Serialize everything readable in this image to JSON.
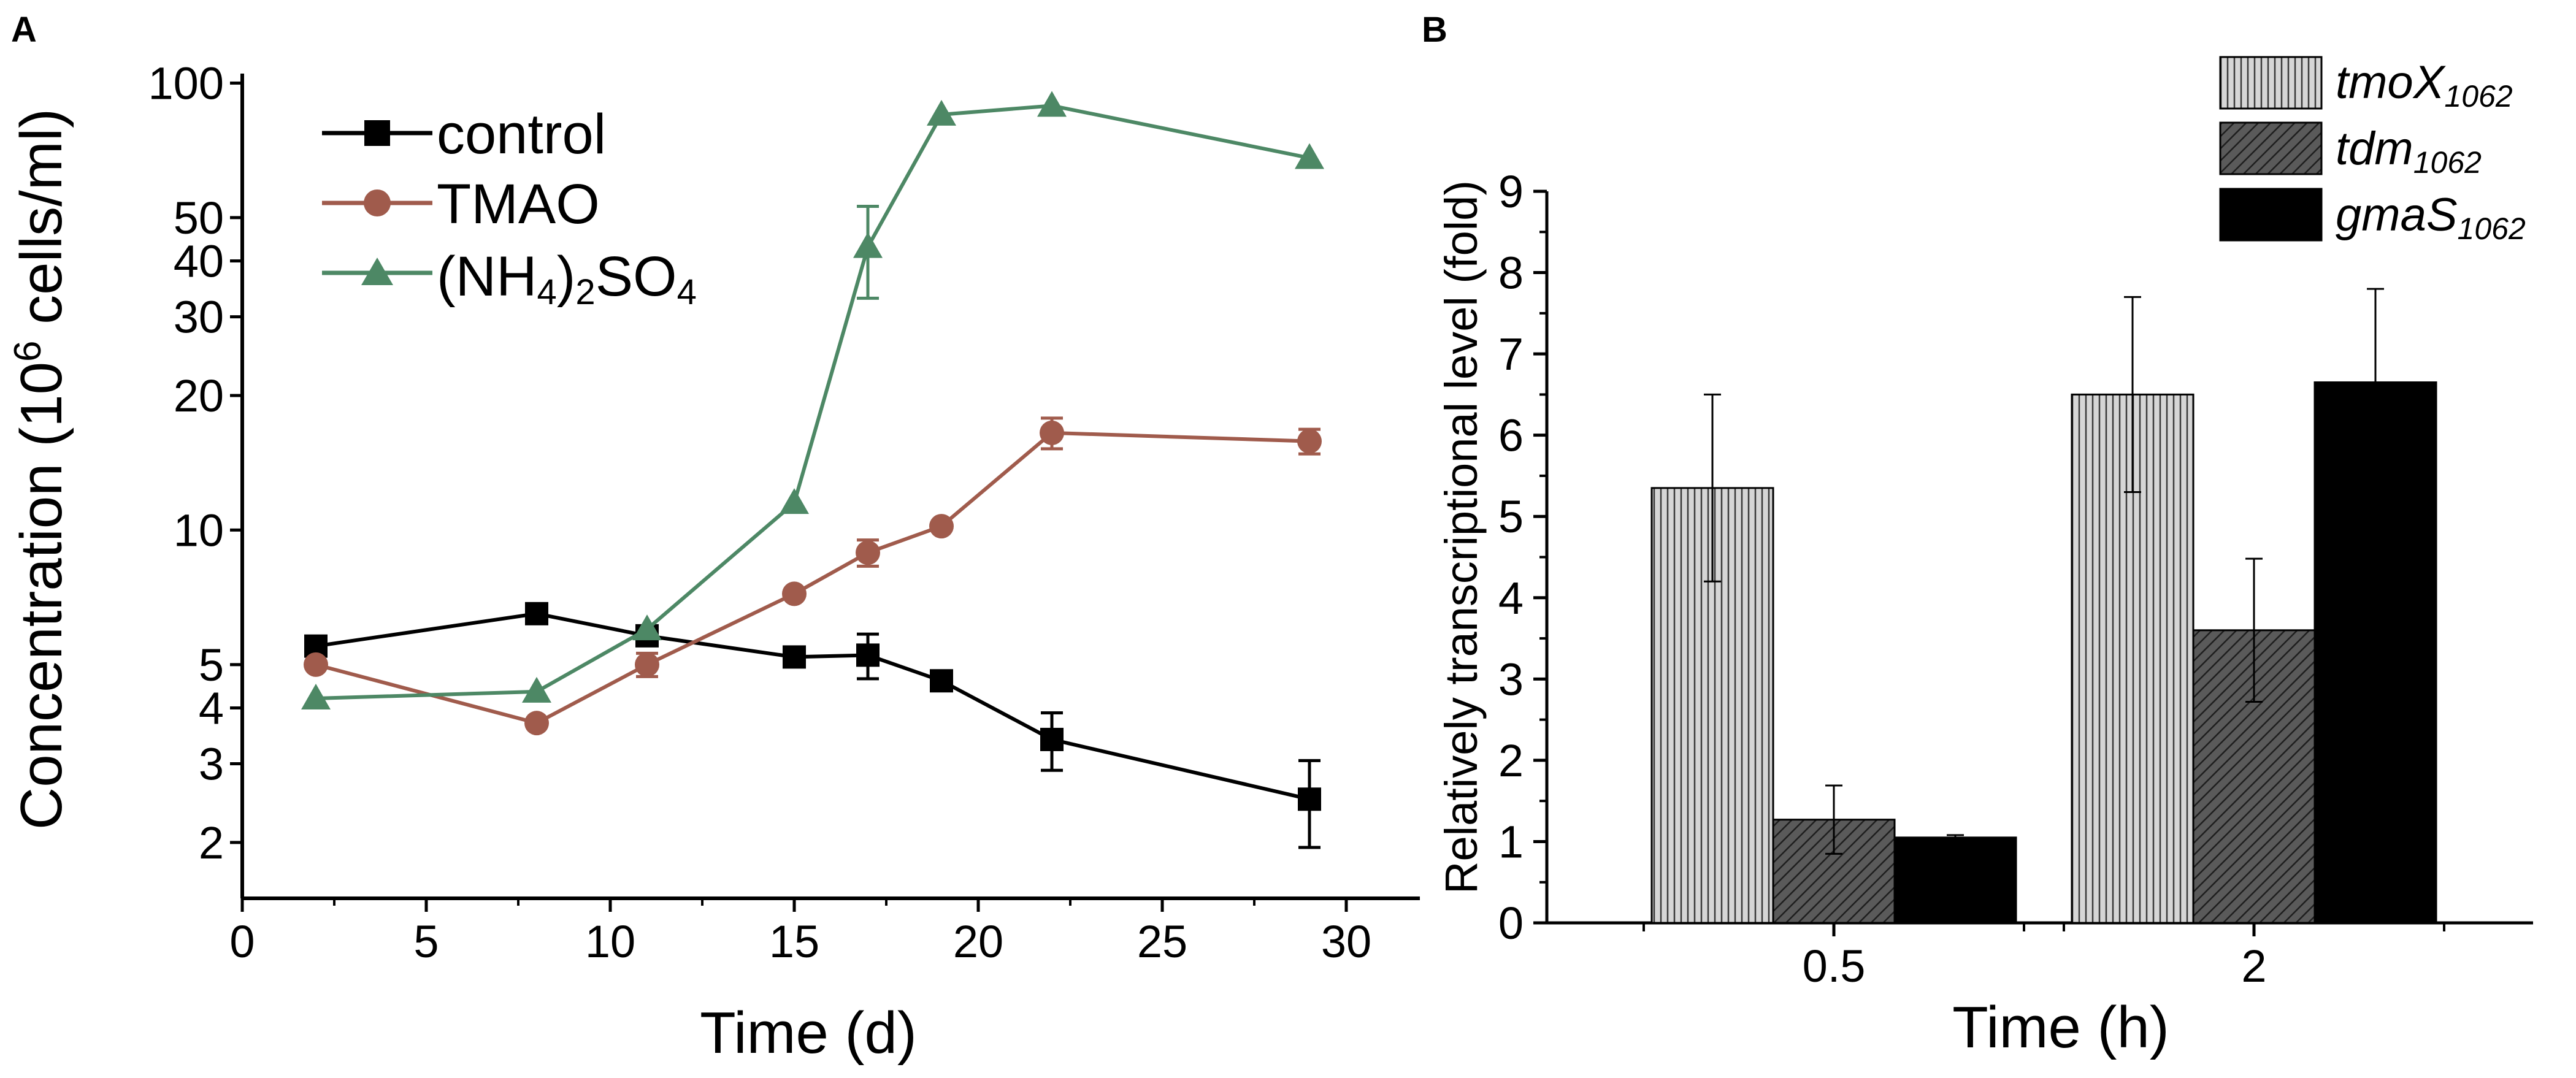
{
  "chart_data": [
    {
      "panel": "A",
      "type": "line",
      "yscale": "log",
      "xlabel": "Time (d)",
      "ylabel": {
        "pre": "Concentration (10",
        "sup": "6",
        "post": " cells/ml)"
      },
      "xlim": [
        0,
        32
      ],
      "ylim": [
        1.5,
        105
      ],
      "xticks": [
        0,
        5,
        10,
        15,
        20,
        25,
        30
      ],
      "yticks": [
        2,
        3,
        4,
        5,
        10,
        20,
        30,
        40,
        50,
        100
      ],
      "series": [
        {
          "key": "control",
          "name": "control",
          "color": "#000000",
          "marker": "square",
          "x": [
            2,
            8,
            11,
            15,
            17,
            19,
            22,
            29
          ],
          "y": [
            5.5,
            6.5,
            5.8,
            5.2,
            5.25,
            4.6,
            3.4,
            2.5
          ],
          "err": [
            0,
            0,
            0,
            0,
            0.6,
            0,
            0.5,
            0.55
          ]
        },
        {
          "key": "tmao",
          "name": "TMAO",
          "color": "#a05b4c",
          "marker": "circle",
          "x": [
            2,
            8,
            11,
            15,
            17,
            19,
            22,
            29
          ],
          "y": [
            5.0,
            3.7,
            5.0,
            7.2,
            8.9,
            10.2,
            16.5,
            15.8
          ],
          "err": [
            0,
            0,
            0.3,
            0,
            0.6,
            0,
            1.3,
            1.0
          ]
        },
        {
          "key": "nh4",
          "name_parts": [
            "(NH",
            "4",
            ")",
            "2",
            "SO",
            "4"
          ],
          "name": "(NH4)2SO4",
          "color": "#4d8865",
          "marker": "triangle",
          "x": [
            2,
            8,
            11,
            15,
            17,
            19,
            22,
            29
          ],
          "y": [
            4.2,
            4.35,
            6.0,
            11.5,
            43,
            85,
            89,
            68
          ],
          "err": [
            0,
            0,
            0,
            0,
            10,
            0,
            0,
            0
          ]
        }
      ]
    },
    {
      "panel": "B",
      "type": "bar",
      "xlabel": "Time (h)",
      "ylabel": "Relatively transcriptional level (fold)",
      "categories": [
        "0.5",
        "2"
      ],
      "ylim": [
        0,
        9
      ],
      "yticks": [
        0,
        1,
        2,
        3,
        4,
        5,
        6,
        7,
        8,
        9
      ],
      "series": [
        {
          "key": "tmox",
          "name_main": "tmoX",
          "name_sub": "1062",
          "pattern": "vertical-lines",
          "values": [
            5.35,
            6.5
          ],
          "err": [
            1.15,
            1.2
          ]
        },
        {
          "key": "tdm",
          "name_main": "tdm",
          "name_sub": "1062",
          "pattern": "diagonal-dark",
          "values": [
            1.27,
            3.6
          ],
          "err": [
            0.42,
            0.88
          ]
        },
        {
          "key": "gmas",
          "name_main": "gmaS",
          "name_sub": "1062",
          "pattern": "solid-black",
          "values": [
            1.05,
            6.65
          ],
          "err": [
            0.03,
            1.15
          ]
        }
      ]
    }
  ],
  "panel_labels": [
    "A",
    "B"
  ]
}
